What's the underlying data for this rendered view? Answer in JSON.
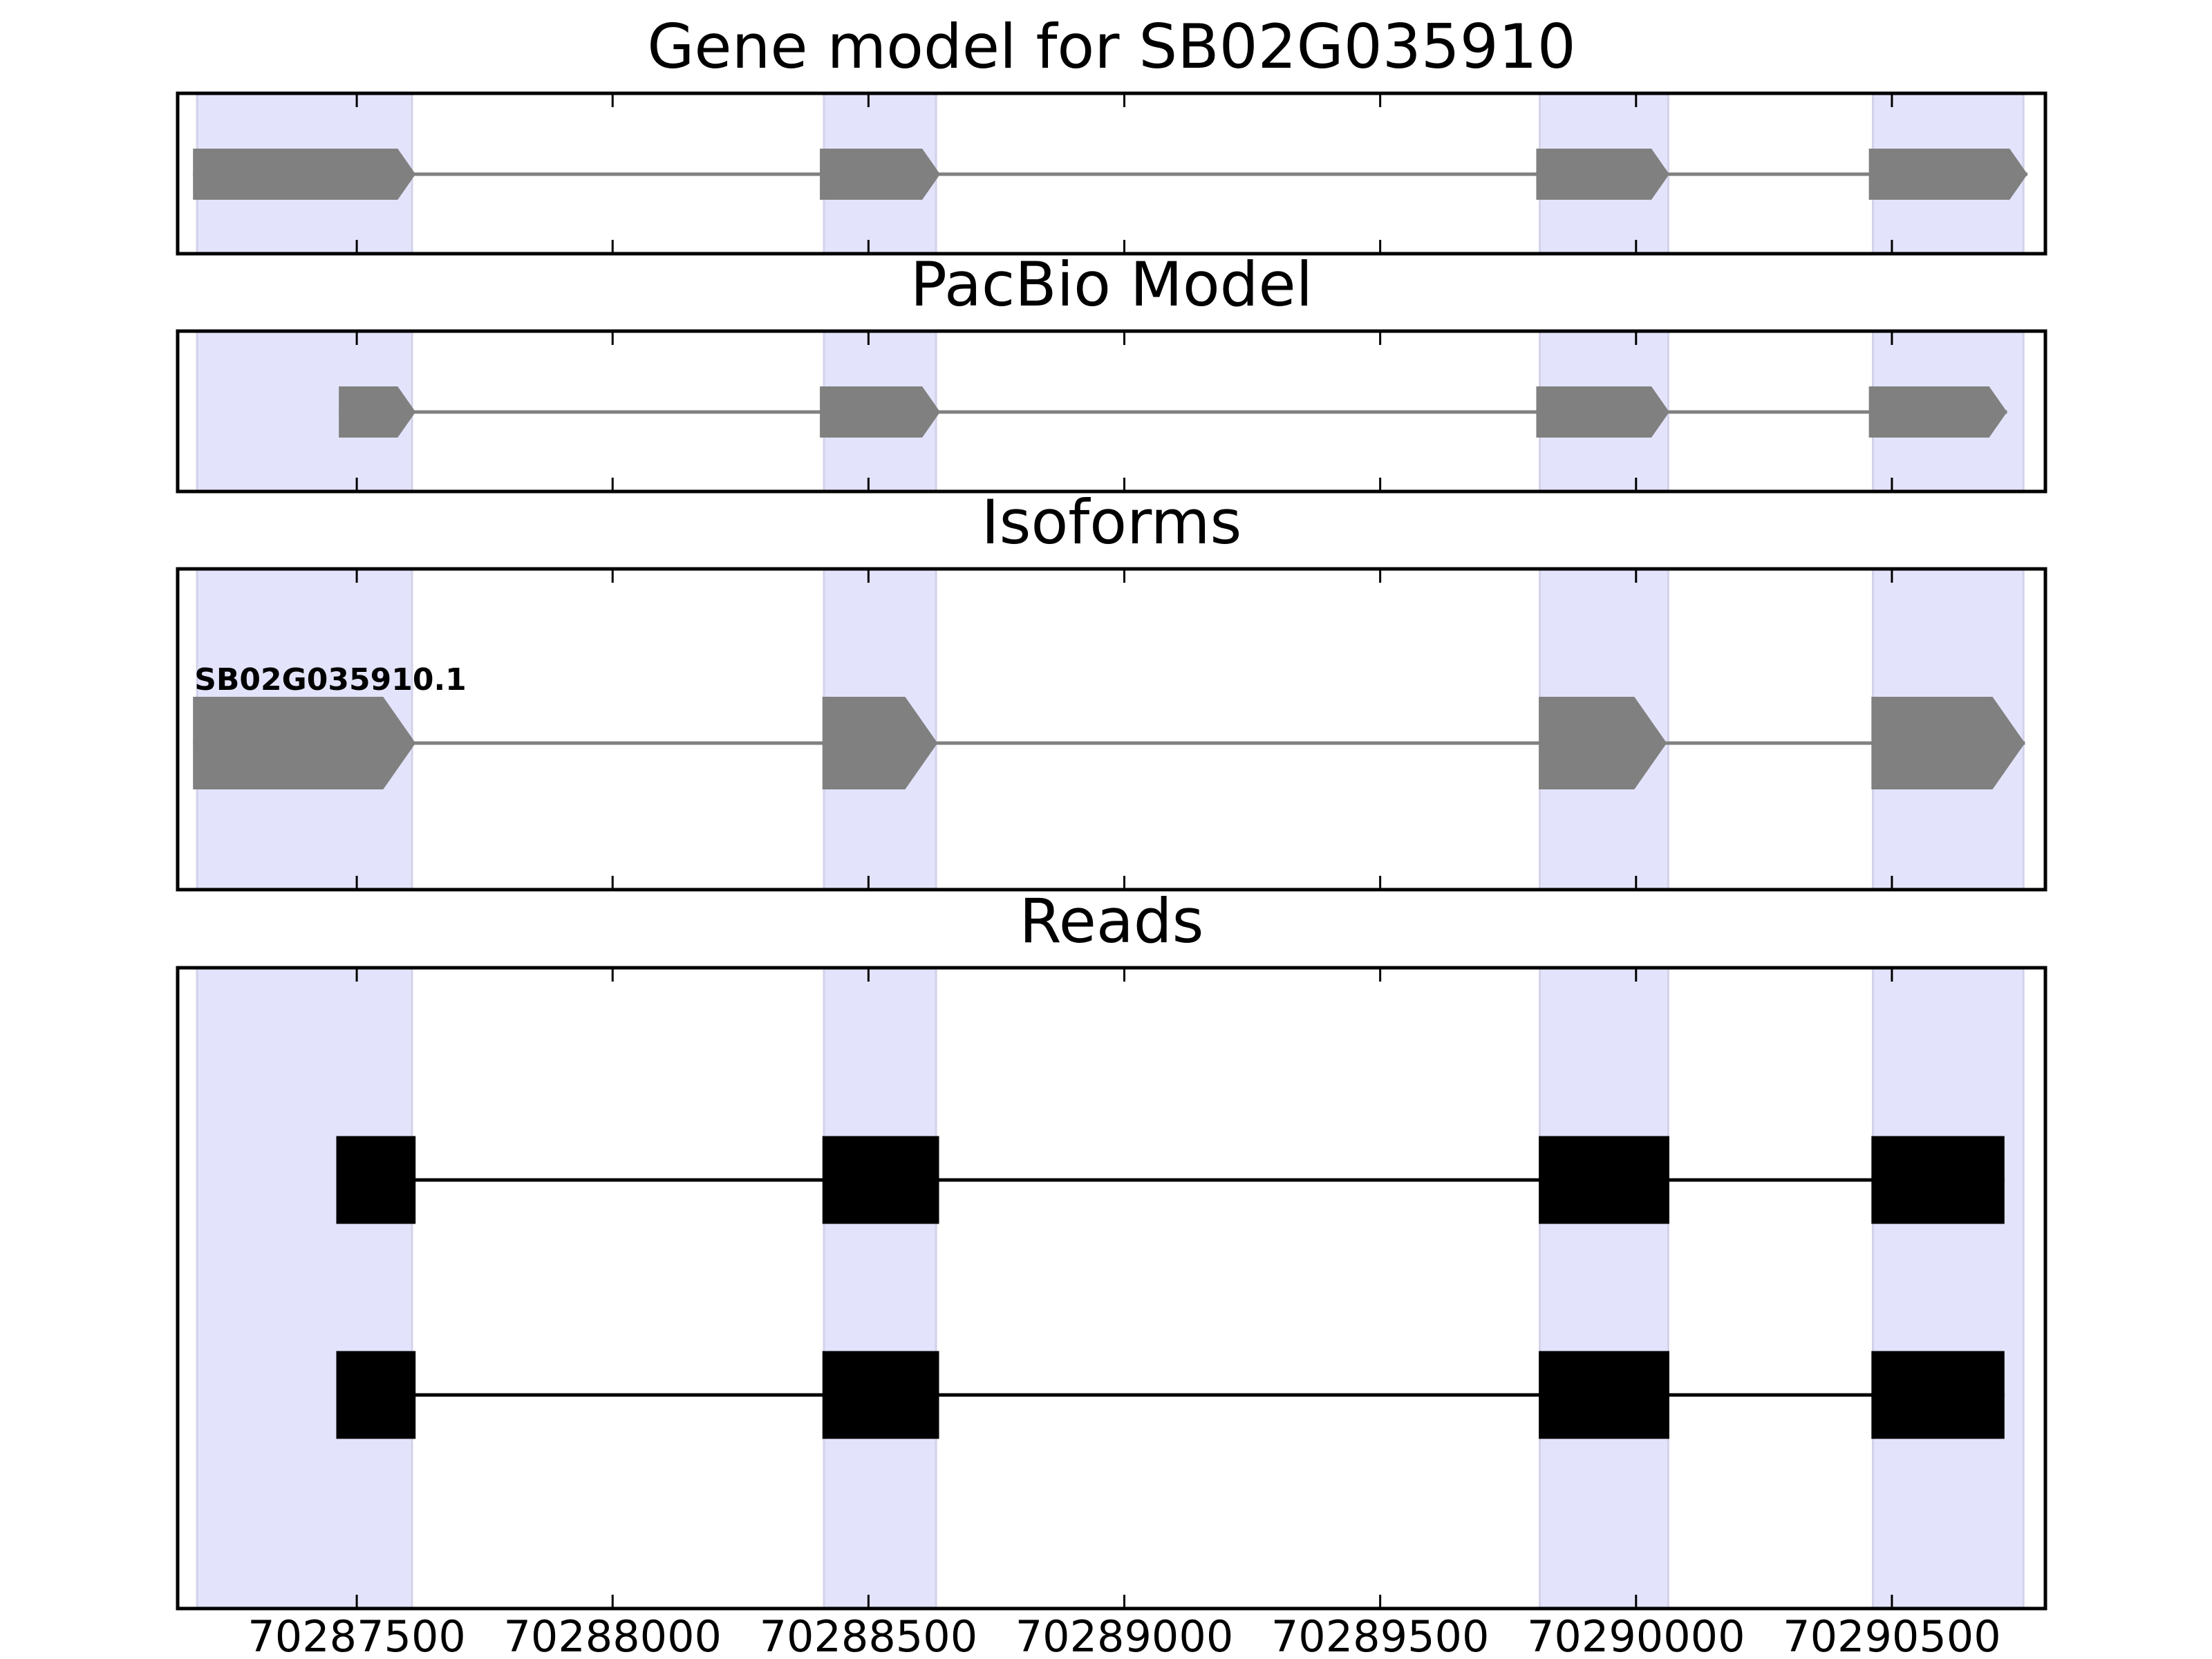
{
  "chart_data": {
    "type": "gene-structure",
    "xlim": [
      70287150,
      70290800
    ],
    "exon_highlights": [
      [
        70287188,
        70287608
      ],
      [
        70288413,
        70288632
      ],
      [
        70289812,
        70290063
      ],
      [
        70290463,
        70290757
      ]
    ],
    "xticks": [
      70287500,
      70288000,
      70288500,
      70289000,
      70289500,
      70290000,
      70290500
    ],
    "xtick_labels": [
      "70287500",
      "70288000",
      "70288500",
      "70289000",
      "70289500",
      "70290000",
      "70290500"
    ],
    "panels": [
      {
        "title": "Gene model for SB02G035910",
        "tracks": [
          {
            "label": "",
            "color": "#808080",
            "exons": [
              [
                70287180,
                70287615
              ],
              [
                70288405,
                70288640
              ],
              [
                70289805,
                70290065
              ],
              [
                70290455,
                70290765
              ]
            ]
          }
        ]
      },
      {
        "title": "PacBio Model",
        "tracks": [
          {
            "label": "",
            "color": "#808080",
            "exons": [
              [
                70287465,
                70287615
              ],
              [
                70288405,
                70288640
              ],
              [
                70289805,
                70290065
              ],
              [
                70290455,
                70290725
              ]
            ]
          }
        ]
      },
      {
        "title": "Isoforms",
        "tracks": [
          {
            "label": "SB02G035910.1",
            "color": "#808080",
            "exons": [
              [
                70287180,
                70287615
              ],
              [
                70288410,
                70288635
              ],
              [
                70289810,
                70290060
              ],
              [
                70290460,
                70290760
              ]
            ]
          }
        ]
      },
      {
        "title": "Reads",
        "tracks": [
          {
            "label": "",
            "color": "#000000",
            "exons": [
              [
                70287460,
                70287615
              ],
              [
                70288410,
                70288638
              ],
              [
                70289810,
                70290065
              ],
              [
                70290460,
                70290720
              ]
            ]
          },
          {
            "label": "",
            "color": "#000000",
            "exons": [
              [
                70287460,
                70287615
              ],
              [
                70288410,
                70288638
              ],
              [
                70289810,
                70290065
              ],
              [
                70290460,
                70290720
              ]
            ]
          }
        ]
      }
    ]
  }
}
